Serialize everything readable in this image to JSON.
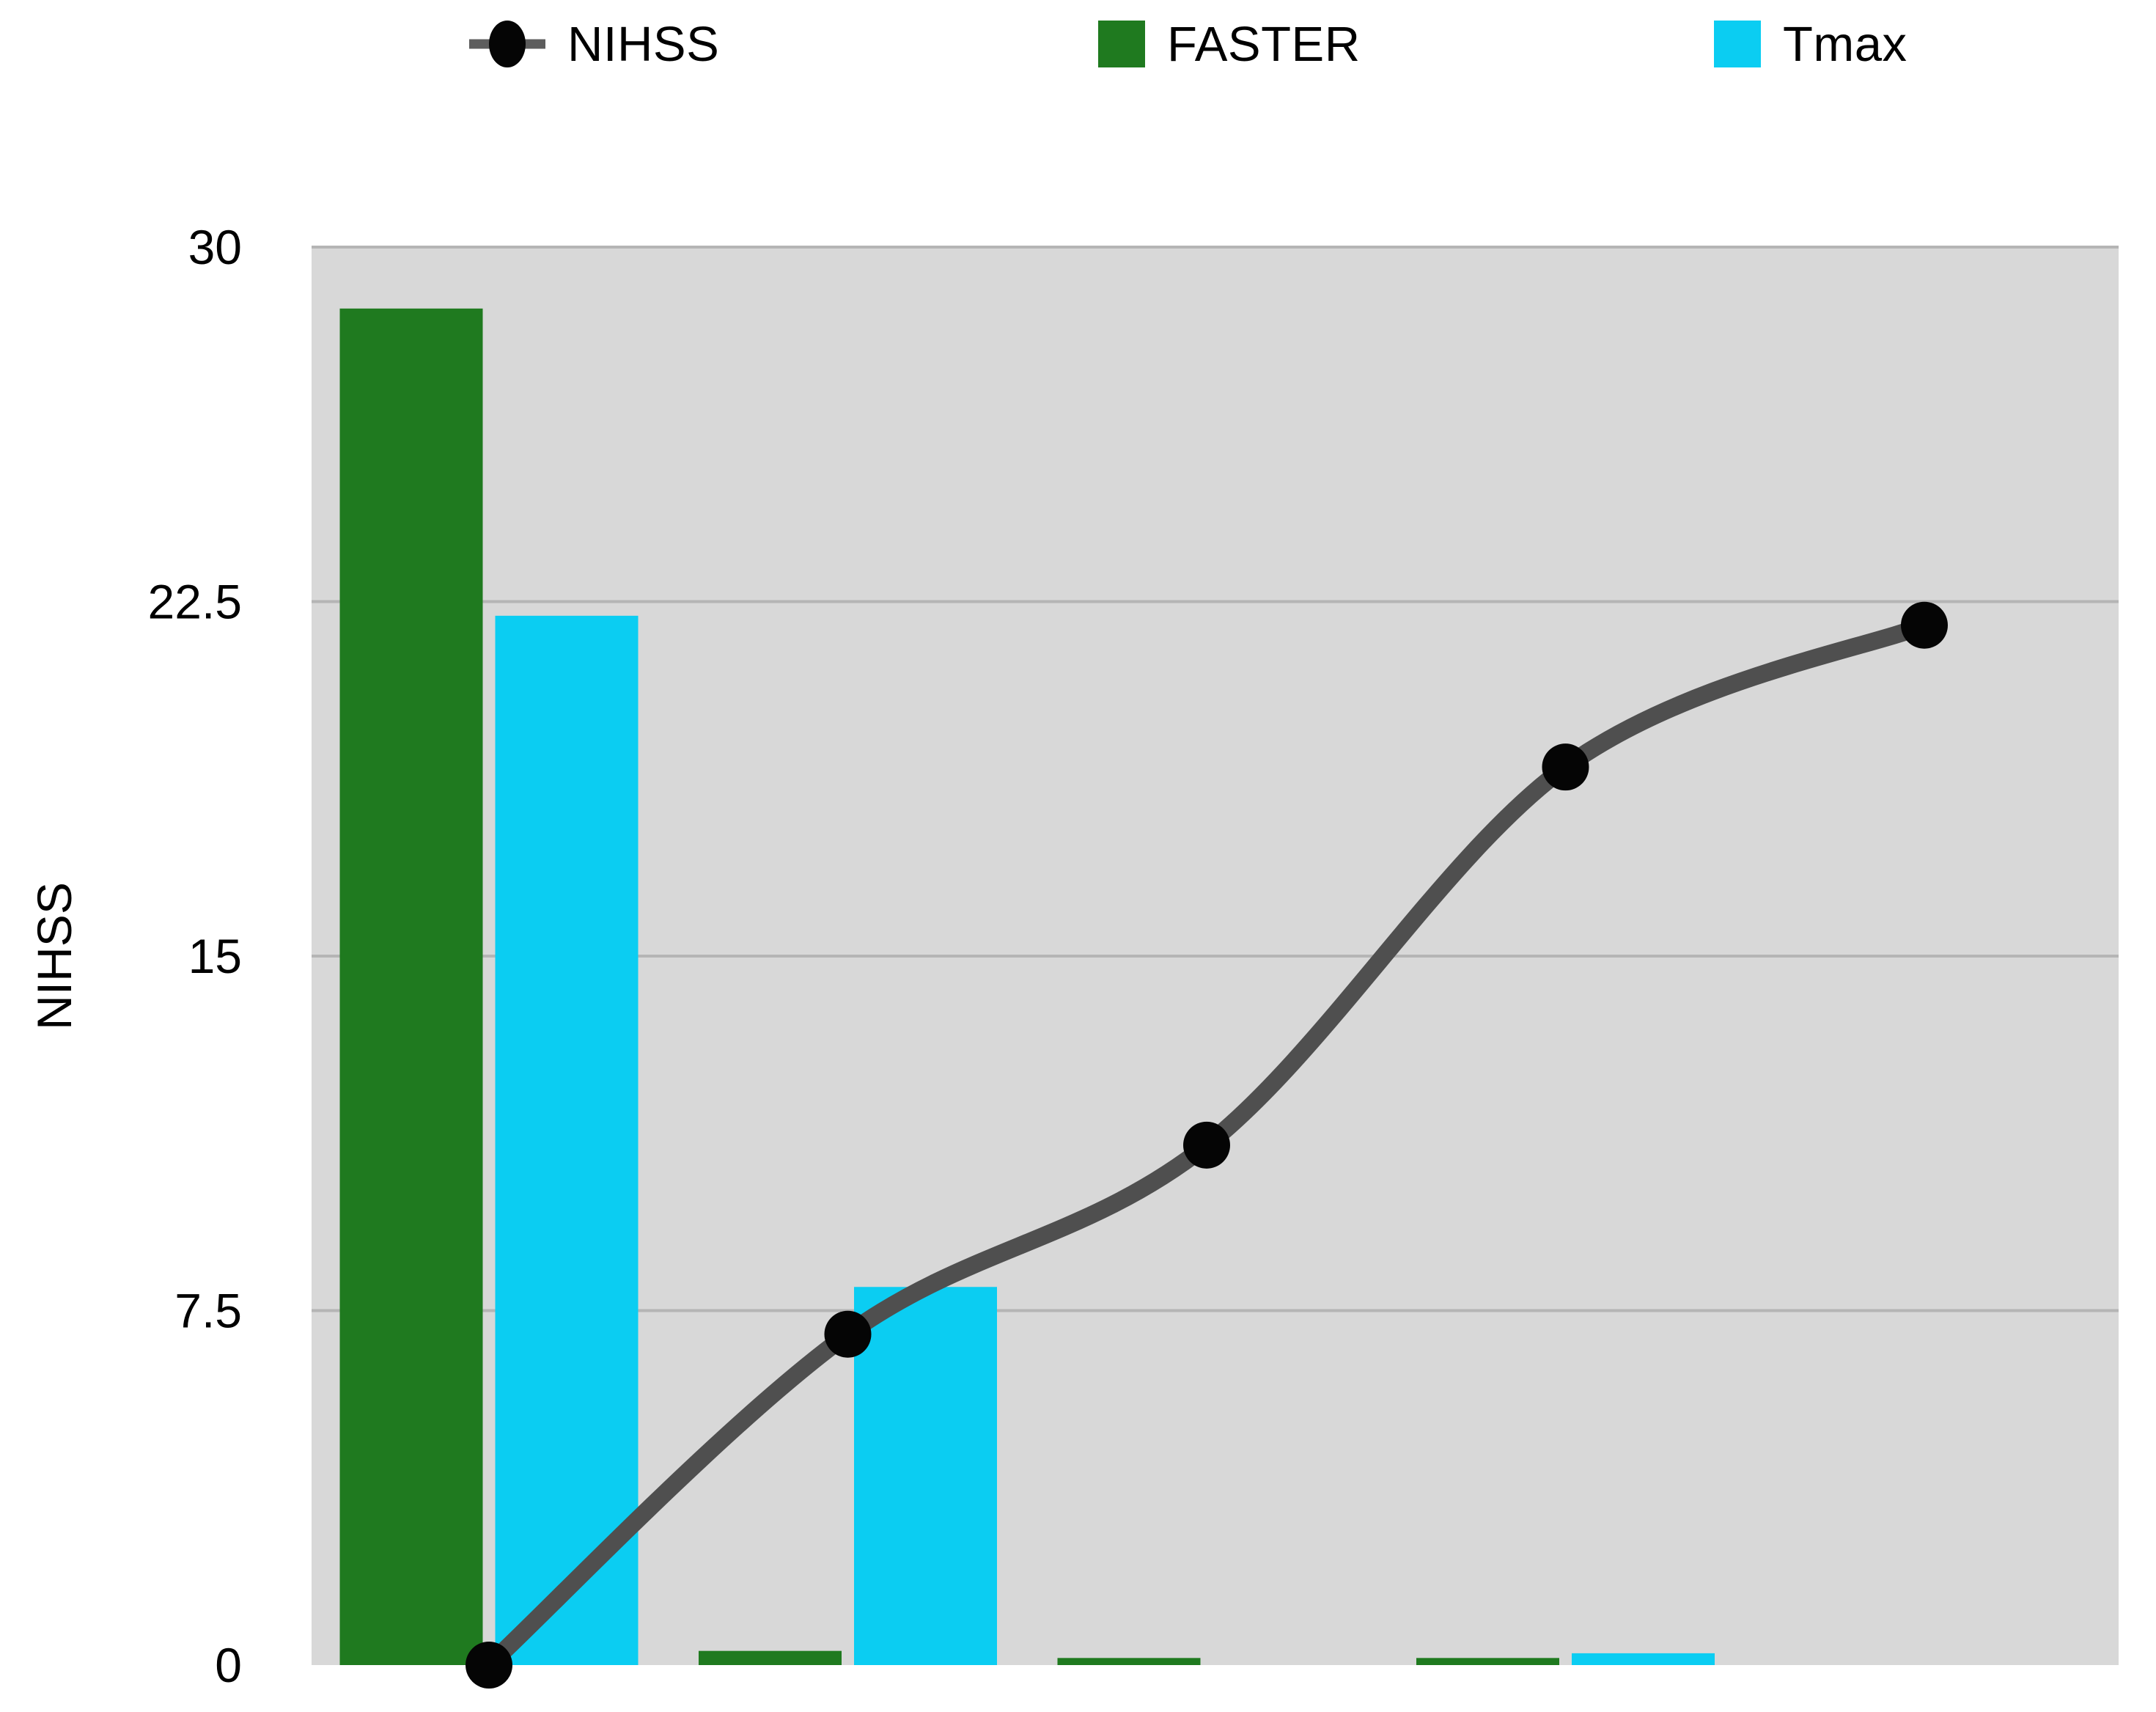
{
  "chart_data": {
    "type": "composed-bar-line",
    "categories": [
      "",
      "",
      "",
      "",
      ""
    ],
    "x_tick_labels_visible": false,
    "series": [
      {
        "name": "NIHSS",
        "type": "line",
        "style": "smooth",
        "color": "#4f4f4f",
        "marker": "circle",
        "marker_color": "#050505",
        "values": [
          0,
          7,
          11,
          19,
          22
        ]
      },
      {
        "name": "FASTER",
        "type": "bar",
        "color": "#1f7a1f",
        "values": [
          28.7,
          0.3,
          0.15,
          0.15,
          null
        ]
      },
      {
        "name": "Tmax",
        "type": "bar",
        "color": "#0bcdf2",
        "values": [
          22.2,
          8,
          null,
          0.25,
          null
        ]
      }
    ],
    "ylabel": "NIHSS",
    "ylim": [
      0,
      30
    ],
    "yticks": [
      0,
      7.5,
      15,
      22.5,
      30
    ],
    "ytick_labels": [
      "0",
      "7.5",
      "15",
      "22.5",
      "30"
    ],
    "grid": true,
    "gridline_values": [
      7.5,
      15,
      22.5,
      30
    ],
    "plot_bg": "#d8d8d8",
    "gridline_color": "#b5b5b5",
    "legend_position": "top"
  }
}
